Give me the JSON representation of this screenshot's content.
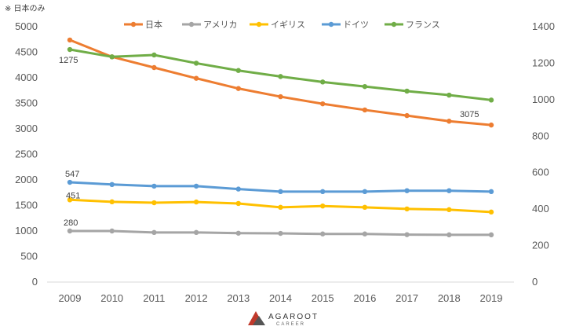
{
  "note": "※ 日本のみ",
  "logo": {
    "name": "AGAROOT",
    "sub": "CAREER"
  },
  "chart_data": {
    "type": "line",
    "x": [
      2009,
      2010,
      2011,
      2012,
      2013,
      2014,
      2015,
      2016,
      2017,
      2018,
      2019
    ],
    "y_left": {
      "lim": [
        0,
        5000
      ],
      "ticks": [
        0,
        500,
        1000,
        1500,
        2000,
        2500,
        3000,
        3500,
        4000,
        4500,
        5000
      ]
    },
    "y_right": {
      "lim": [
        0,
        1400
      ],
      "ticks": [
        0,
        200,
        400,
        600,
        800,
        1000,
        1200,
        1400
      ]
    },
    "grid": false,
    "legend_position": "top",
    "series": [
      {
        "name": "日本",
        "color": "#ED7D31",
        "axis": "left",
        "values": [
          4740,
          4410,
          4200,
          3990,
          3790,
          3630,
          3490,
          3370,
          3260,
          3150,
          3075
        ]
      },
      {
        "name": "アメリカ",
        "color": "#A5A5A5",
        "axis": "right",
        "values": [
          280,
          280,
          272,
          272,
          268,
          267,
          264,
          264,
          260,
          259,
          259
        ]
      },
      {
        "name": "イギリス",
        "color": "#FFC000",
        "axis": "right",
        "values": [
          451,
          440,
          435,
          439,
          431,
          410,
          417,
          410,
          401,
          397,
          384
        ]
      },
      {
        "name": "ドイツ",
        "color": "#5B9BD5",
        "axis": "right",
        "values": [
          547,
          535,
          526,
          526,
          510,
          496,
          496,
          496,
          501,
          501,
          496
        ]
      },
      {
        "name": "フランス",
        "color": "#70AD47",
        "axis": "right",
        "values": [
          1275,
          1235,
          1245,
          1200,
          1160,
          1127,
          1097,
          1072,
          1047,
          1025,
          998
        ]
      }
    ],
    "data_labels": [
      {
        "series": "日本",
        "x": 2019,
        "text": "3075"
      },
      {
        "series": "フランス",
        "x": 2009,
        "text": "1275"
      },
      {
        "series": "ドイツ",
        "x": 2009,
        "text": "547"
      },
      {
        "series": "イギリス",
        "x": 2009,
        "text": "451"
      },
      {
        "series": "アメリカ",
        "x": 2009,
        "text": "280"
      }
    ]
  }
}
